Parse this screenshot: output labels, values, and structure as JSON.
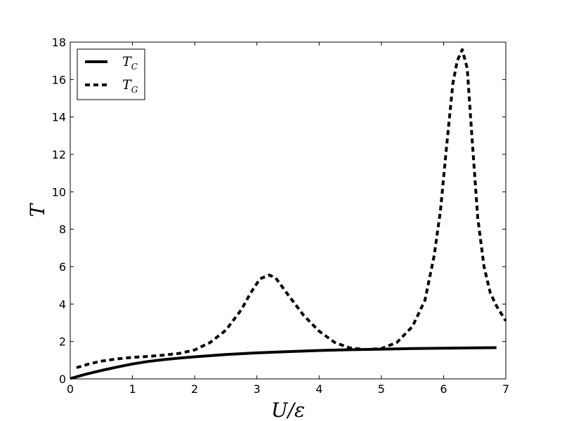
{
  "chart_data": {
    "type": "line",
    "xlabel": "U/ε",
    "ylabel": "T",
    "xlim": [
      0,
      7
    ],
    "ylim": [
      0,
      18
    ],
    "xticks": [
      "0",
      "1",
      "2",
      "3",
      "4",
      "5",
      "6",
      "7"
    ],
    "yticks": [
      "0",
      "2",
      "4",
      "6",
      "8",
      "10",
      "12",
      "14",
      "16",
      "18"
    ],
    "grid": false,
    "legend_position": "top-left",
    "series": [
      {
        "name": "T_C",
        "legend_main": "T",
        "legend_sub": "C",
        "style": "solid",
        "color": "#000000",
        "x": [
          0,
          0.25,
          0.5,
          0.75,
          1.0,
          1.25,
          1.5,
          1.75,
          2.0,
          2.5,
          3.0,
          3.5,
          4.0,
          4.5,
          5.0,
          5.5,
          6.0,
          6.5,
          6.85
        ],
        "y": [
          0.02,
          0.25,
          0.45,
          0.63,
          0.8,
          0.93,
          1.03,
          1.11,
          1.18,
          1.3,
          1.39,
          1.46,
          1.52,
          1.56,
          1.59,
          1.62,
          1.64,
          1.66,
          1.67
        ]
      },
      {
        "name": "T_G",
        "legend_main": "T",
        "legend_sub": "G",
        "style": "dashed",
        "color": "#000000",
        "x": [
          0.1,
          0.3,
          0.5,
          0.75,
          1.0,
          1.25,
          1.5,
          1.75,
          2.0,
          2.25,
          2.5,
          2.75,
          2.9,
          3.05,
          3.2,
          3.3,
          3.5,
          3.75,
          4.0,
          4.25,
          4.5,
          4.75,
          5.0,
          5.25,
          5.5,
          5.7,
          5.85,
          5.95,
          6.05,
          6.15,
          6.22,
          6.3,
          6.38,
          6.45,
          6.55,
          6.65,
          6.75,
          6.85,
          7.0
        ],
        "y": [
          0.6,
          0.8,
          0.95,
          1.07,
          1.15,
          1.2,
          1.27,
          1.36,
          1.55,
          1.95,
          2.6,
          3.7,
          4.6,
          5.35,
          5.55,
          5.4,
          4.5,
          3.4,
          2.55,
          1.95,
          1.65,
          1.57,
          1.62,
          1.95,
          2.8,
          4.2,
          6.6,
          9.0,
          12.5,
          15.8,
          17.0,
          17.6,
          16.6,
          13.2,
          8.6,
          6.0,
          4.6,
          3.9,
          3.1
        ]
      }
    ]
  }
}
